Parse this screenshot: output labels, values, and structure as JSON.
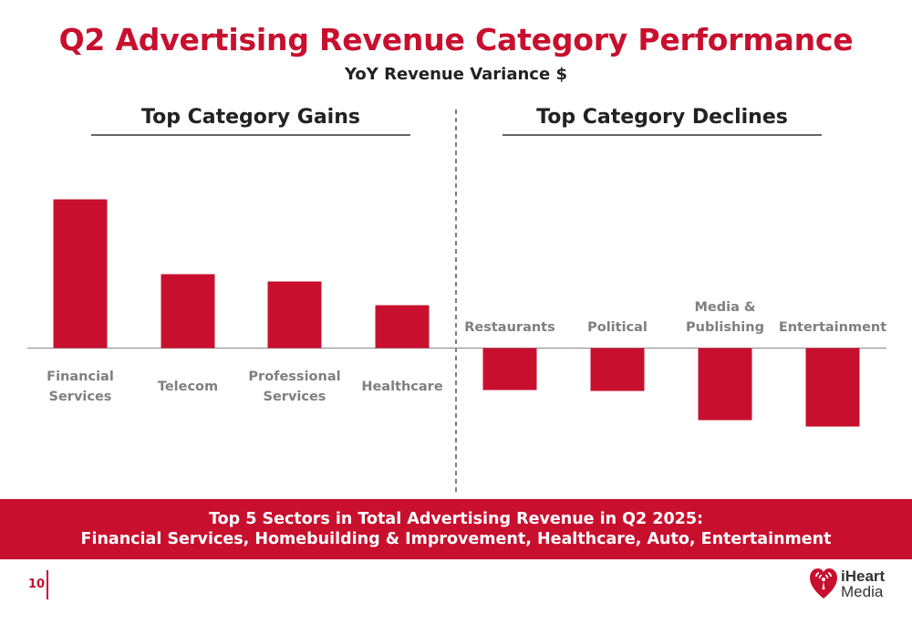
{
  "title": "Q2 Advertising Revenue Category Performance",
  "subtitle": "YoY Revenue Variance $",
  "sections": {
    "gains": "Top Category Gains",
    "declines": "Top Category Declines"
  },
  "banner": {
    "line1": "Top 5 Sectors in Total Advertising Revenue in Q2 2025:",
    "line2": "Financial Services, Homebuilding & Improvement, Healthcare, Auto, Entertainment"
  },
  "page_number": "10",
  "logo": {
    "word1": "iHeart",
    "word2": "Media",
    "icon": "iheart-logo-icon"
  },
  "colors": {
    "accent": "#c8102e",
    "bar": "#c8102e"
  },
  "chart_data": {
    "type": "bar",
    "categories": [
      "Financial Services",
      "Telecom",
      "Professional Services",
      "Healthcare",
      "Restaurants",
      "Political",
      "Media & Publishing",
      "Entertainment"
    ],
    "category_lines": [
      [
        "Financial",
        "Services"
      ],
      [
        "Telecom"
      ],
      [
        "Professional",
        "Services"
      ],
      [
        "Healthcare"
      ],
      [
        "Restaurants"
      ],
      [
        "Political"
      ],
      [
        "Media &",
        "Publishing"
      ],
      [
        "Entertainment"
      ]
    ],
    "values": [
      163,
      81,
      73,
      47,
      -46,
      -47,
      -79,
      -86
    ],
    "ylim": [
      -100,
      180
    ],
    "grid": false,
    "legend": "none"
  }
}
